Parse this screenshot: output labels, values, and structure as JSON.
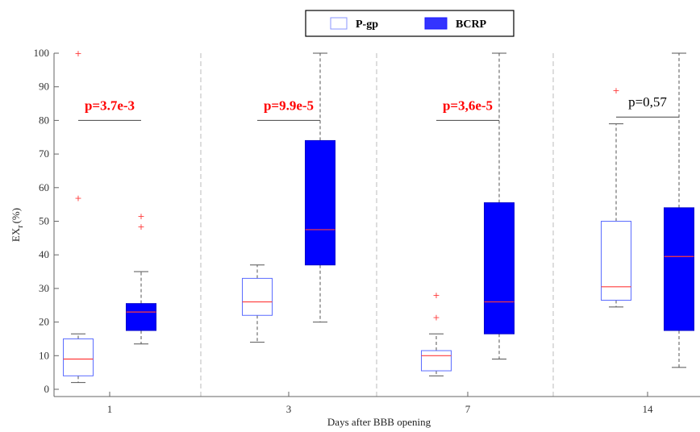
{
  "chart_data": {
    "type": "box",
    "xlabel": "Days after BBB opening",
    "ylabel": "EX",
    "ylabel_sub": "r",
    "ylabel_unit": "(%)",
    "ylim": [
      0,
      100
    ],
    "yticks": [
      0,
      10,
      20,
      30,
      40,
      50,
      60,
      70,
      80,
      90,
      100
    ],
    "grid": false,
    "legend_position": "top-center",
    "colors": {
      "pgp_edge": "#5b6cff",
      "bcrp_fill": "#0000ff",
      "median_pgp": "#ff3b3b",
      "median_bcrp": "#ff3b3b",
      "whisker": "#555555",
      "outlier": "#ff3b3b",
      "separator": "#bbbbbb",
      "sig_text": "#ff0000",
      "ns_text": "#000000"
    },
    "series": [
      {
        "name": "P-gp",
        "style": "open"
      },
      {
        "name": "BCRP",
        "style": "filled"
      }
    ],
    "groups": [
      {
        "label": "1",
        "pvalue": "p=3.7e-3",
        "significant": true,
        "bracket_y": 80,
        "boxes": [
          {
            "series": "P-gp",
            "whisker_low": 2,
            "q1": 4,
            "median": 9,
            "q3": 15,
            "whisker_high": 16.5,
            "outliers": [
              57,
              100
            ]
          },
          {
            "series": "BCRP",
            "whisker_low": 13.5,
            "q1": 17.5,
            "median": 23,
            "q3": 25.5,
            "whisker_high": 35,
            "outliers": [
              48.5,
              51.5
            ]
          }
        ]
      },
      {
        "label": "3",
        "pvalue": "p=9.9e-5",
        "significant": true,
        "bracket_y": 80,
        "boxes": [
          {
            "series": "P-gp",
            "whisker_low": 14,
            "q1": 22,
            "median": 26,
            "q3": 33,
            "whisker_high": 37,
            "outliers": []
          },
          {
            "series": "BCRP",
            "whisker_low": 20,
            "q1": 37,
            "median": 47.5,
            "q3": 74,
            "whisker_high": 100,
            "outliers": []
          }
        ]
      },
      {
        "label": "7",
        "pvalue": "p=3,6e-5",
        "significant": true,
        "bracket_y": 80,
        "boxes": [
          {
            "series": "P-gp",
            "whisker_low": 4,
            "q1": 5.5,
            "median": 10,
            "q3": 11.5,
            "whisker_high": 16.5,
            "outliers": [
              21.5,
              28
            ]
          },
          {
            "series": "BCRP",
            "whisker_low": 9,
            "q1": 16.5,
            "median": 26,
            "q3": 55.5,
            "whisker_high": 100,
            "outliers": []
          }
        ]
      },
      {
        "label": "14",
        "pvalue": "p=0,57",
        "significant": false,
        "bracket_y": 81,
        "boxes": [
          {
            "series": "P-gp",
            "whisker_low": 24.5,
            "q1": 26.5,
            "median": 30.5,
            "q3": 50,
            "whisker_high": 79,
            "outliers": [
              89
            ]
          },
          {
            "series": "BCRP",
            "whisker_low": 6.5,
            "q1": 17.5,
            "median": 39.5,
            "q3": 54,
            "whisker_high": 100,
            "outliers": []
          }
        ]
      }
    ]
  }
}
